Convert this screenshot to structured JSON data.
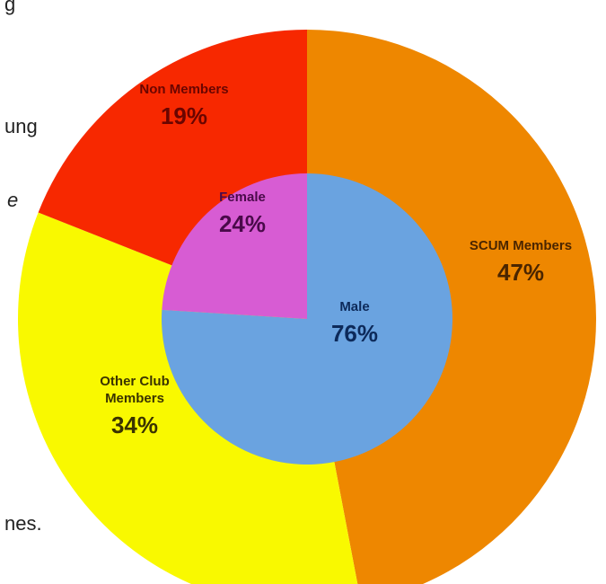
{
  "background_text": {
    "line1": "g",
    "line2": "ung",
    "line3": "e",
    "line4": "nes."
  },
  "chart_data": {
    "type": "pie",
    "rings": [
      {
        "ring": "outer",
        "slices": [
          {
            "label_lines": [
              "SCUM Members"
            ],
            "value": 47,
            "display": "47%",
            "color": "#EE8700"
          },
          {
            "label_lines": [
              "Other Club",
              "Members"
            ],
            "value": 34,
            "display": "34%",
            "color": "#F9F900"
          },
          {
            "label_lines": [
              "Non Members"
            ],
            "value": 19,
            "display": "19%",
            "color": "#F72800"
          }
        ]
      },
      {
        "ring": "inner",
        "slices": [
          {
            "label_lines": [
              "Male"
            ],
            "value": 76,
            "display": "76%",
            "color": "#6AA3E0"
          },
          {
            "label_lines": [
              "Female"
            ],
            "value": 24,
            "display": "24%",
            "color": "#D75CD3"
          }
        ]
      }
    ],
    "label_colors": {
      "SCUM Members": "#4a2500",
      "Other Club Members": "#3a3300",
      "Non Members": "#6a0500",
      "Male": "#0d2a5a",
      "Female": "#4a0a4a"
    },
    "title": "",
    "legend": "none"
  }
}
